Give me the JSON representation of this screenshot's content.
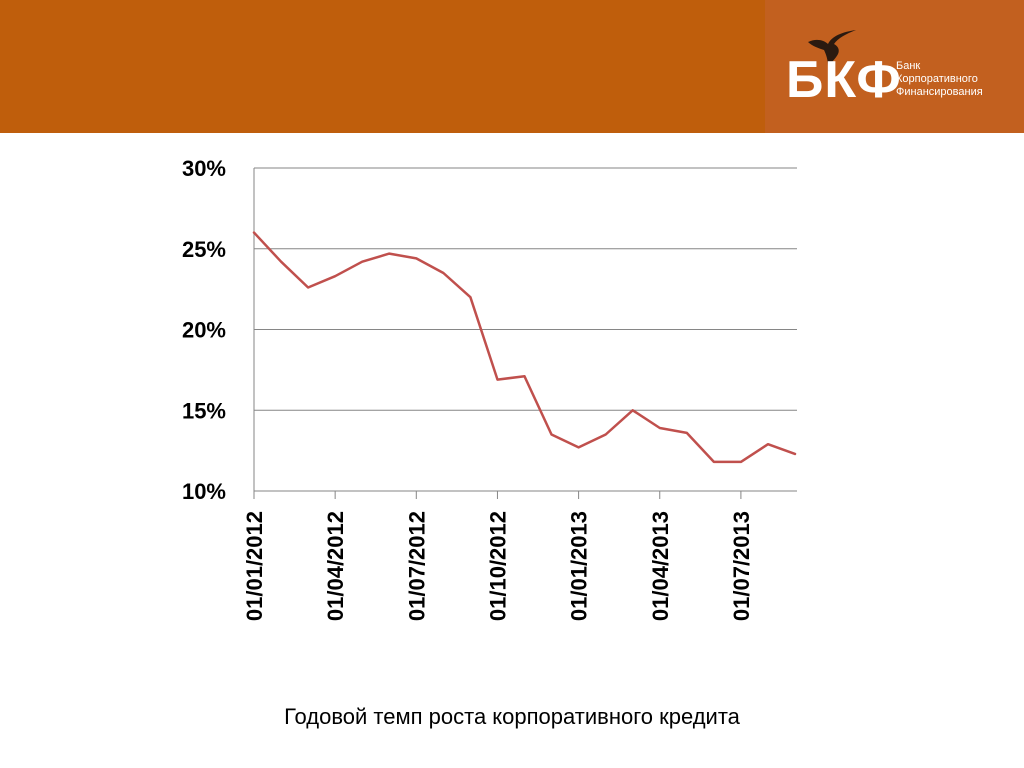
{
  "logo": {
    "letters": "БКФ",
    "name_lines": [
      "Банк",
      "Корпоративного",
      "Финансирования"
    ],
    "icon": "hummingbird-icon"
  },
  "colors": {
    "header_band": "#bf5e0c",
    "logo_panel": "#c2601f",
    "series_line": "#c0504d",
    "grid": "#868686"
  },
  "caption": "Годовой темп роста корпоративного кредита",
  "chart_data": {
    "type": "line",
    "title": "",
    "xlabel": "",
    "ylabel": "",
    "ylim": [
      0.1,
      0.3
    ],
    "y_ticks": [
      0.1,
      0.15,
      0.2,
      0.25,
      0.3
    ],
    "y_tick_labels": [
      "10%",
      "15%",
      "20%",
      "25%",
      "30%"
    ],
    "x_tick_labels": [
      "01/01/2012",
      "01/04/2012",
      "01/07/2012",
      "01/10/2012",
      "01/01/2013",
      "01/04/2013",
      "01/07/2013"
    ],
    "x_tick_every": 3,
    "grid": true,
    "legend": "none",
    "x": [
      "2012-01",
      "2012-02",
      "2012-03",
      "2012-04",
      "2012-05",
      "2012-06",
      "2012-07",
      "2012-08",
      "2012-09",
      "2012-10",
      "2012-11",
      "2012-12",
      "2013-01",
      "2013-02",
      "2013-03",
      "2013-04",
      "2013-05",
      "2013-06",
      "2013-07",
      "2013-08",
      "2013-09"
    ],
    "series": [
      {
        "values": [
          0.26,
          0.242,
          0.226,
          0.233,
          0.242,
          0.247,
          0.244,
          0.235,
          0.22,
          0.169,
          0.171,
          0.135,
          0.127,
          0.135,
          0.15,
          0.139,
          0.136,
          0.118,
          0.118,
          0.129,
          0.123
        ]
      }
    ]
  }
}
